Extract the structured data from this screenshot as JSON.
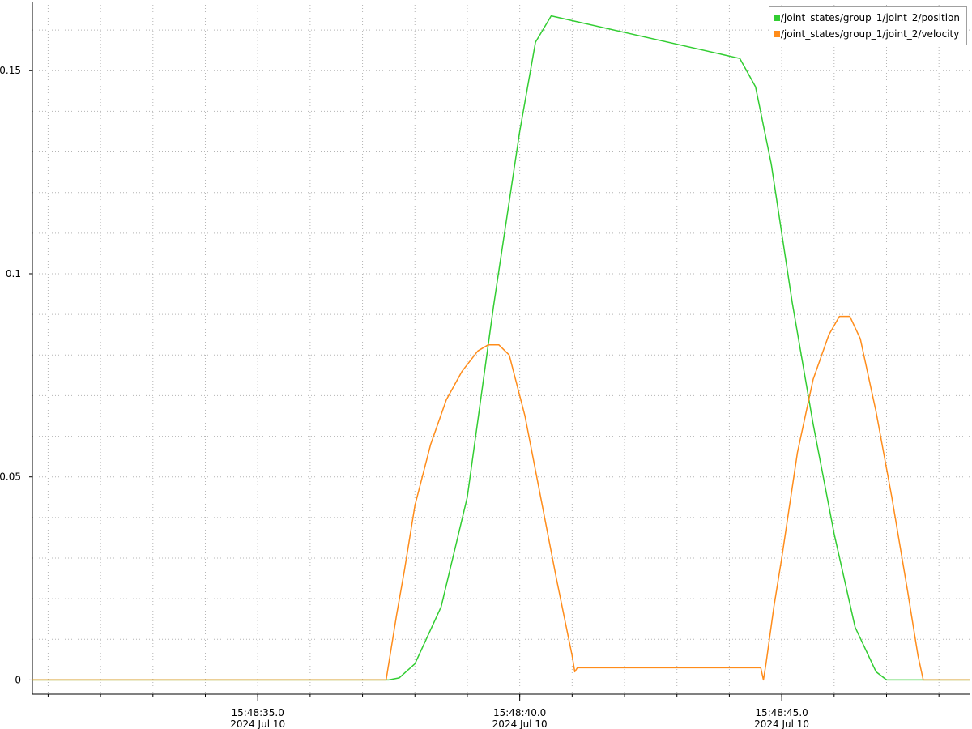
{
  "chart_data": {
    "type": "line",
    "title": "",
    "xlabel": "",
    "ylabel": "",
    "xlim": [
      "15:48:30.7",
      "15:48:48.6"
    ],
    "ylim": [
      -0.0035,
      0.167
    ],
    "x_tick_labels": [
      {
        "time": "15:48:35.0",
        "date": "2024 Jul 10"
      },
      {
        "time": "15:48:40.0",
        "date": "2024 Jul 10"
      },
      {
        "time": "15:48:45.0",
        "date": "2024 Jul 10"
      }
    ],
    "y_tick_labels": [
      "0",
      "0.05",
      "0.1",
      "0.15"
    ],
    "y_ticks": [
      0,
      0.05,
      0.1,
      0.15
    ],
    "grid": true,
    "legend_position": "top-right",
    "series": [
      {
        "name": "/joint_states/group_1/joint_2/position",
        "color": "#32cd32",
        "points": [
          [
            "15:48:30.7",
            0
          ],
          [
            "15:48:37.5",
            0
          ],
          [
            "15:48:37.7",
            0.0005
          ],
          [
            "15:48:38.0",
            0.004
          ],
          [
            "15:48:38.5",
            0.018
          ],
          [
            "15:48:39.0",
            0.045
          ],
          [
            "15:48:39.5",
            0.092
          ],
          [
            "15:48:40.0",
            0.135
          ],
          [
            "15:48:40.3",
            0.157
          ],
          [
            "15:48:40.6",
            0.1635
          ],
          [
            "15:48:44.2",
            0.153
          ],
          [
            "15:48:44.5",
            0.146
          ],
          [
            "15:48:44.8",
            0.127
          ],
          [
            "15:48:45.2",
            0.093
          ],
          [
            "15:48:45.6",
            0.063
          ],
          [
            "15:48:46.0",
            0.036
          ],
          [
            "15:48:46.4",
            0.013
          ],
          [
            "15:48:46.8",
            0.002
          ],
          [
            "15:48:47.0",
            0
          ],
          [
            "15:48:48.6",
            0
          ]
        ]
      },
      {
        "name": "/joint_states/group_1/joint_2/velocity",
        "color": "#ff8c1a",
        "points": [
          [
            "15:48:30.7",
            0
          ],
          [
            "15:48:37.45",
            0
          ],
          [
            "15:48:37.5",
            0.004
          ],
          [
            "15:48:37.65",
            0.016
          ],
          [
            "15:48:37.8",
            0.027
          ],
          [
            "15:48:38.0",
            0.043
          ],
          [
            "15:48:38.3",
            0.058
          ],
          [
            "15:48:38.6",
            0.069
          ],
          [
            "15:48:38.9",
            0.076
          ],
          [
            "15:48:39.2",
            0.081
          ],
          [
            "15:48:39.4",
            0.0825
          ],
          [
            "15:48:39.6",
            0.0825
          ],
          [
            "15:48:39.8",
            0.08
          ],
          [
            "15:48:40.1",
            0.065
          ],
          [
            "15:48:40.4",
            0.045
          ],
          [
            "15:48:40.7",
            0.025
          ],
          [
            "15:48:41.0",
            0.006
          ],
          [
            "15:48:41.05",
            0.002
          ],
          [
            "15:48:41.1",
            0.003
          ],
          [
            "15:48:44.6",
            0.003
          ],
          [
            "15:48:44.65",
            0.0
          ],
          [
            "15:48:44.7",
            0.004
          ],
          [
            "15:48:44.85",
            0.018
          ],
          [
            "15:48:45.0",
            0.03
          ],
          [
            "15:48:45.3",
            0.056
          ],
          [
            "15:48:45.6",
            0.074
          ],
          [
            "15:48:45.9",
            0.085
          ],
          [
            "15:48:46.1",
            0.0895
          ],
          [
            "15:48:46.3",
            0.0895
          ],
          [
            "15:48:46.5",
            0.084
          ],
          [
            "15:48:46.8",
            0.066
          ],
          [
            "15:48:47.1",
            0.045
          ],
          [
            "15:48:47.4",
            0.022
          ],
          [
            "15:48:47.6",
            0.006
          ],
          [
            "15:48:47.7",
            0.0
          ],
          [
            "15:48:48.6",
            0
          ]
        ]
      }
    ]
  }
}
